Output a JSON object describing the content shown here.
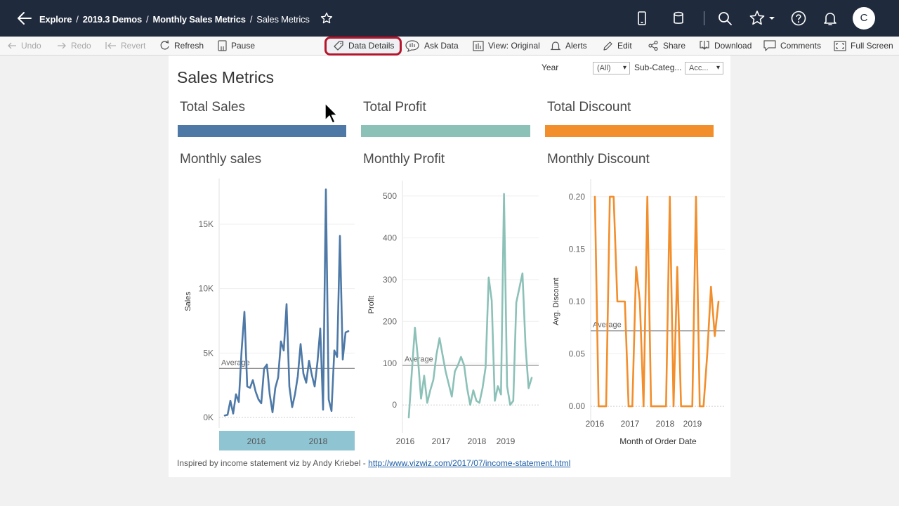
{
  "nav": {
    "breadcrumb": [
      "Explore",
      "2019.3 Demos",
      "Monthly Sales Metrics"
    ],
    "current": "Sales Metrics",
    "avatar_initial": "C"
  },
  "toolbar": {
    "undo": "Undo",
    "redo": "Redo",
    "revert": "Revert",
    "refresh": "Refresh",
    "pause": "Pause",
    "data_details": "Data Details",
    "ask_data": "Ask Data",
    "view": "View: Original",
    "alerts": "Alerts",
    "edit": "Edit",
    "share": "Share",
    "download": "Download",
    "comments": "Comments",
    "full_screen": "Full Screen"
  },
  "dashboard": {
    "title": "Sales Metrics",
    "filters": {
      "year_label": "Year",
      "year_value": "(All)",
      "subcat_label": "Sub-Categ...",
      "subcat_value": "Acc..."
    },
    "kpis": [
      {
        "title": "Total Sales",
        "color": "#4e79a7"
      },
      {
        "title": "Total Profit",
        "color": "#8cc1b8"
      },
      {
        "title": "Total Discount",
        "color": "#f28e2b"
      }
    ],
    "footer_text": "Inspired by income statement viz by Andy Kriebel - ",
    "footer_link": "http://www.vizwiz.com/2017/07/income-statement.html"
  },
  "chart_data": [
    {
      "type": "line",
      "title": "Monthly sales",
      "ylabel": "Sales",
      "xlabel": "",
      "color": "#4e79a7",
      "ylim": [
        0,
        18000
      ],
      "yticks": [
        0,
        5000,
        10000,
        15000
      ],
      "ytick_labels": [
        "0K",
        "5K",
        "10K",
        "15K"
      ],
      "xtick_labels": [
        "2016",
        "2018"
      ],
      "average": 3800,
      "average_label": "Average",
      "values": [
        150,
        200,
        1300,
        300,
        1800,
        1200,
        5200,
        8200,
        2400,
        2300,
        2900,
        2000,
        1400,
        1100,
        3800,
        4100,
        1800,
        400,
        2300,
        3100,
        5900,
        5200,
        8800,
        2400,
        800,
        1800,
        3200,
        5700,
        3400,
        2700,
        4400,
        3300,
        2400,
        4300,
        6900,
        600,
        17700,
        1400,
        500,
        5200,
        4700,
        14100,
        4500,
        6600,
        6700
      ]
    },
    {
      "type": "line",
      "title": "Monthly Profit",
      "ylabel": "Profit",
      "xlabel": "",
      "color": "#8cc1b8",
      "ylim": [
        -40,
        520
      ],
      "yticks": [
        0,
        100,
        200,
        300,
        400,
        500
      ],
      "xtick_labels": [
        "2016",
        "2017",
        "2018",
        "2019"
      ],
      "average": 95,
      "average_label": "Average",
      "values": [
        -30,
        80,
        185,
        110,
        15,
        70,
        5,
        35,
        60,
        120,
        160,
        120,
        80,
        50,
        20,
        80,
        95,
        115,
        95,
        40,
        0,
        35,
        10,
        5,
        40,
        90,
        305,
        250,
        10,
        45,
        25,
        505,
        45,
        0,
        10,
        245,
        280,
        315,
        140,
        40,
        65
      ]
    },
    {
      "type": "line",
      "title": "Monthly Discount",
      "ylabel": "Avg. Discount",
      "xlabel": "Month of Order Date",
      "color": "#f28e2b",
      "ylim": [
        -0.01,
        0.21
      ],
      "yticks": [
        0,
        0.05,
        0.1,
        0.15,
        0.2
      ],
      "ytick_labels": [
        "0.00",
        "0.05",
        "0.10",
        "0.15",
        "0.20"
      ],
      "xtick_labels": [
        "2016",
        "2017",
        "2018",
        "2019"
      ],
      "average": 0.072,
      "average_label": "Average",
      "values": [
        0.2,
        0.0,
        0.0,
        0.0,
        0.2,
        0.2,
        0.1,
        0.1,
        0.1,
        0.0,
        0.0,
        0.133,
        0.1,
        0.0,
        0.2,
        0.0,
        0.0,
        0.0,
        0.0,
        0.0,
        0.2,
        0.0,
        0.133,
        0.0,
        0.0,
        0.0,
        0.0,
        0.2,
        0.0,
        0.0,
        0.05,
        0.114,
        0.067,
        0.1
      ]
    }
  ]
}
